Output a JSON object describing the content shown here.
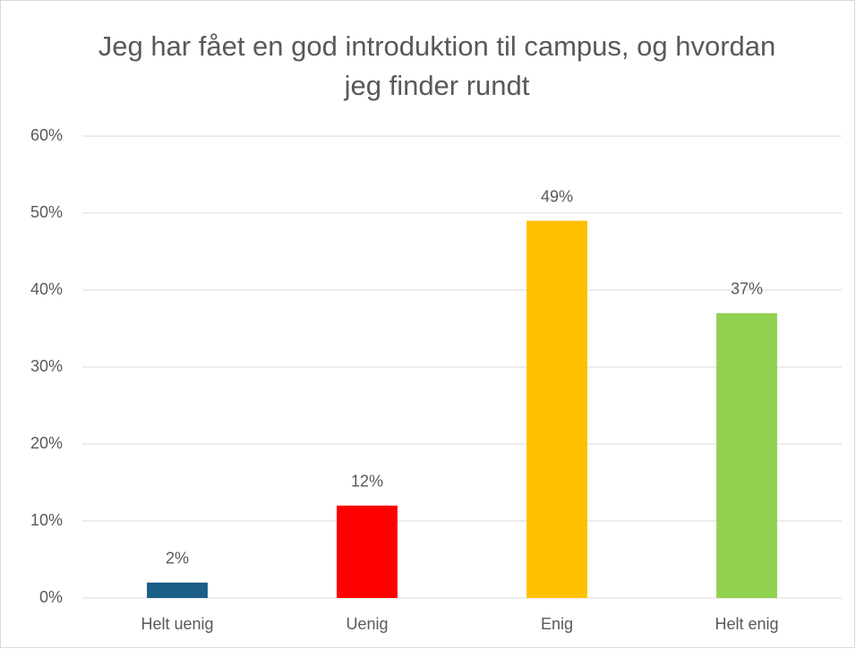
{
  "chart_data": {
    "type": "bar",
    "title": "Jeg har fået en god introduktion til campus, og hvordan jeg finder rundt",
    "categories": [
      "Helt uenig",
      "Uenig",
      "Enig",
      "Helt enig"
    ],
    "values": [
      2,
      12,
      49,
      37
    ],
    "value_labels": [
      "2%",
      "12%",
      "49%",
      "37%"
    ],
    "colors": [
      "#1b5e86",
      "#ff0000",
      "#ffc000",
      "#92d050"
    ],
    "ylim": [
      0,
      60
    ],
    "yticks": [
      {
        "value": 0,
        "label": "0%"
      },
      {
        "value": 10,
        "label": "10%"
      },
      {
        "value": 20,
        "label": "20%"
      },
      {
        "value": 30,
        "label": "30%"
      },
      {
        "value": 40,
        "label": "40%"
      },
      {
        "value": 50,
        "label": "50%"
      },
      {
        "value": 60,
        "label": "60%"
      }
    ],
    "grid": true
  }
}
